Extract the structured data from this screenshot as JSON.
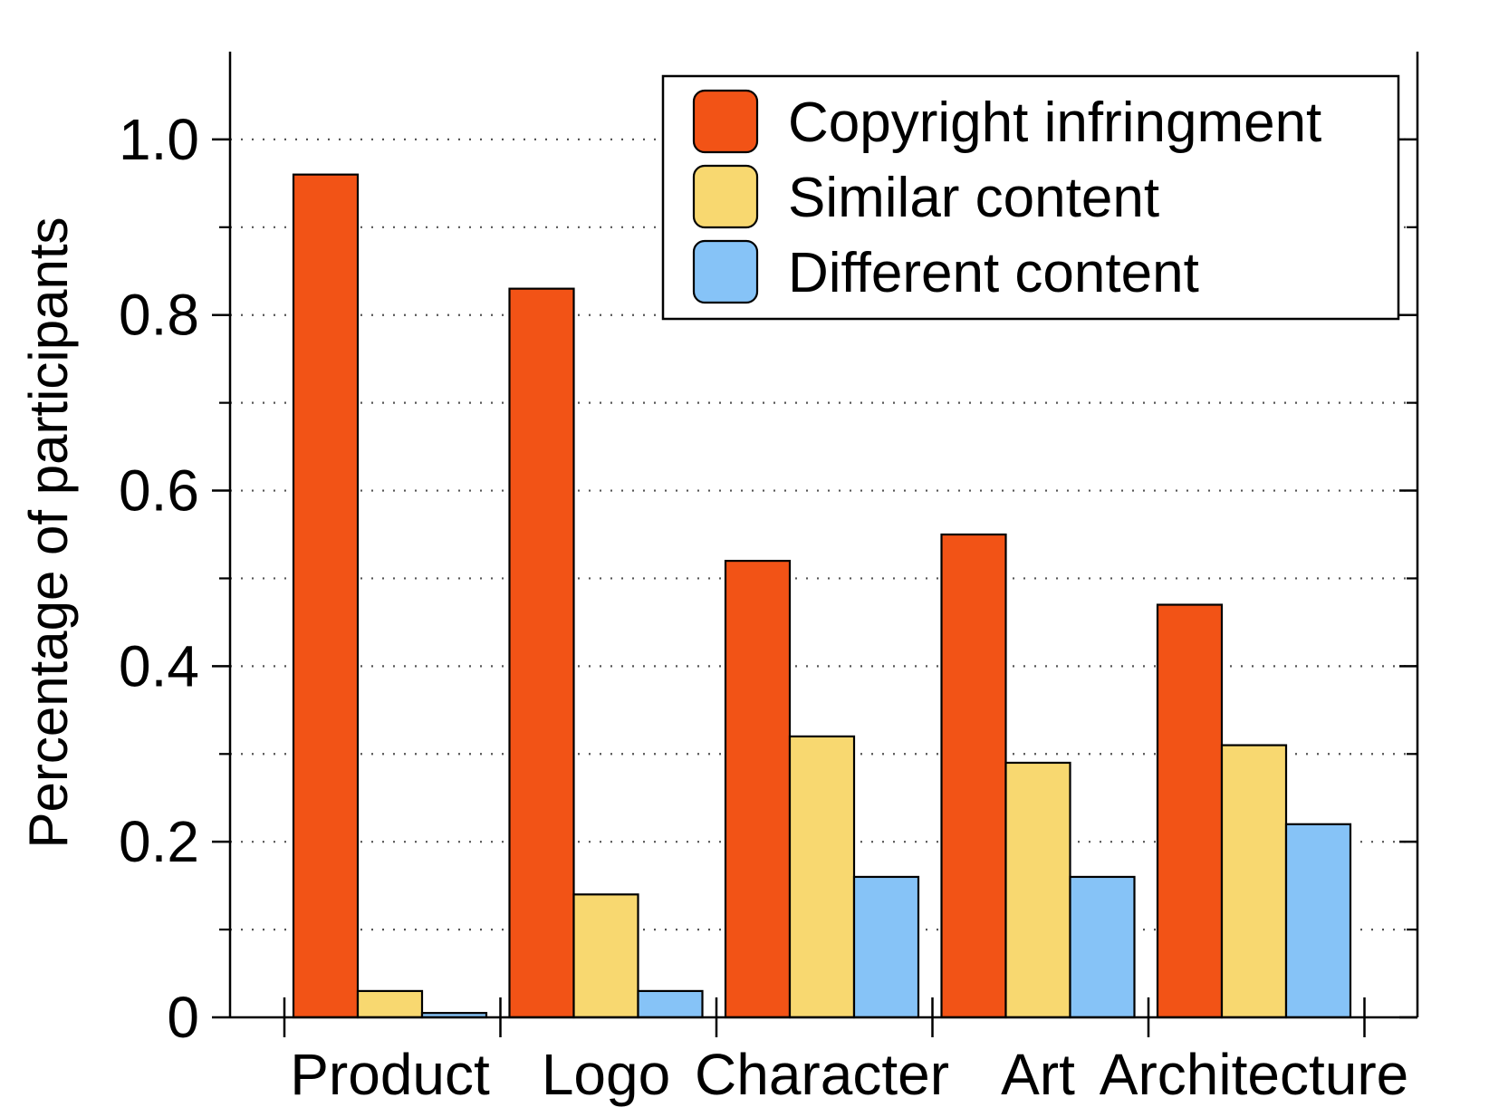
{
  "chart_data": {
    "type": "bar",
    "title": "",
    "xlabel": "",
    "ylabel": "Percentage of participants",
    "ylim": [
      0,
      1.1
    ],
    "yticks": [
      0,
      0.2,
      0.4,
      0.6,
      0.8,
      1.0
    ],
    "ytick_labels": [
      "0",
      "0.2",
      "0.4",
      "0.6",
      "0.8",
      "1.0"
    ],
    "minor_yticks": [
      0.1,
      0.3,
      0.5,
      0.7,
      0.9
    ],
    "grid": true,
    "grid_style": "dotted",
    "legend_position": "top-right",
    "categories": [
      "Product",
      "Logo",
      "Character",
      "Art",
      "Architecture"
    ],
    "series": [
      {
        "name": "Copyright infringment",
        "color": "#F25316",
        "values": [
          0.96,
          0.83,
          0.52,
          0.55,
          0.47
        ]
      },
      {
        "name": "Similar content",
        "color": "#F8D870",
        "values": [
          0.03,
          0.14,
          0.32,
          0.29,
          0.31
        ]
      },
      {
        "name": "Different content",
        "color": "#86C3F7",
        "values": [
          0.005,
          0.03,
          0.16,
          0.16,
          0.22
        ]
      }
    ]
  }
}
